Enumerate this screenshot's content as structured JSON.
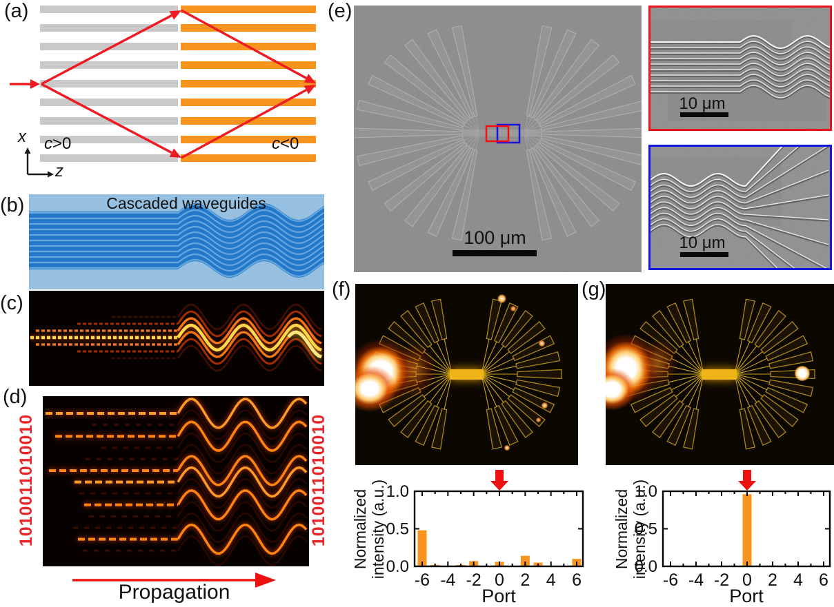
{
  "figure": {
    "panels": {
      "a": {
        "label": "(a)",
        "region_left": {
          "symbol": "c",
          "relation": ">0"
        },
        "region_right": {
          "symbol": "c",
          "relation": "<0"
        },
        "axis_vertical": "x",
        "axis_horizontal": "z"
      },
      "b": {
        "label": "(b)",
        "title": "Cascaded waveguides"
      },
      "c": {
        "label": "(c)"
      },
      "d": {
        "label": "(d)",
        "binary_left": "1010011010010",
        "binary_right": "1010011010010",
        "propagation_label": "Propagation"
      },
      "e": {
        "label": "(e)",
        "scalebar": "100 μm",
        "inset_red_scalebar": "10 μm",
        "inset_blue_scalebar": "10 μm"
      },
      "f": {
        "label": "(f)"
      },
      "g": {
        "label": "(g)"
      }
    },
    "colors": {
      "accent_red": "#ed1c24",
      "gray_lattice": "#c9c9c9",
      "orange_lattice": "#f7941d",
      "waveguide_blue": "#2478ca",
      "waveguide_bg_blue": "#97c0e0",
      "bar_orange": "#f7941d",
      "binary_red": "#e8262a"
    }
  },
  "chart_data": [
    {
      "id": "chart-f",
      "panel": "f",
      "type": "bar",
      "xlabel": "Port",
      "ylabel": "Normalized intensity (a.u.)",
      "ylabel_lines": [
        "Normalized",
        "intensity (a.u.)"
      ],
      "x": [
        -6,
        -5,
        -4,
        -3,
        -2,
        -1,
        0,
        1,
        2,
        3,
        4,
        5,
        6
      ],
      "values": [
        0.48,
        0.02,
        0,
        0.02,
        0.07,
        0,
        0.06,
        0,
        0.14,
        0.05,
        0,
        0,
        0.1
      ],
      "xticks": [
        -6,
        -4,
        -2,
        0,
        2,
        4,
        6
      ],
      "yticks": [
        "0.0",
        "0.5",
        "1.0"
      ],
      "ylim": [
        0,
        1.0
      ],
      "marker_port": 0,
      "grid": false,
      "legend": false
    },
    {
      "id": "chart-g",
      "panel": "g",
      "type": "bar",
      "xlabel": "Port",
      "ylabel": "Normalized intensity (a.u.)",
      "ylabel_lines": [
        "Normalized",
        "intensity (a.u.)"
      ],
      "x": [
        -6,
        -5,
        -4,
        -3,
        -2,
        -1,
        0,
        1,
        2,
        3,
        4,
        5,
        6
      ],
      "values": [
        0,
        0,
        0,
        0,
        0,
        0,
        0.96,
        0,
        0,
        0,
        0,
        0,
        0
      ],
      "xticks": [
        -6,
        -4,
        -2,
        0,
        2,
        4,
        6
      ],
      "yticks": [
        "0.0",
        "0.5",
        "1.0"
      ],
      "ylim": [
        0,
        1.0
      ],
      "marker_port": 0,
      "grid": false,
      "legend": false
    }
  ]
}
